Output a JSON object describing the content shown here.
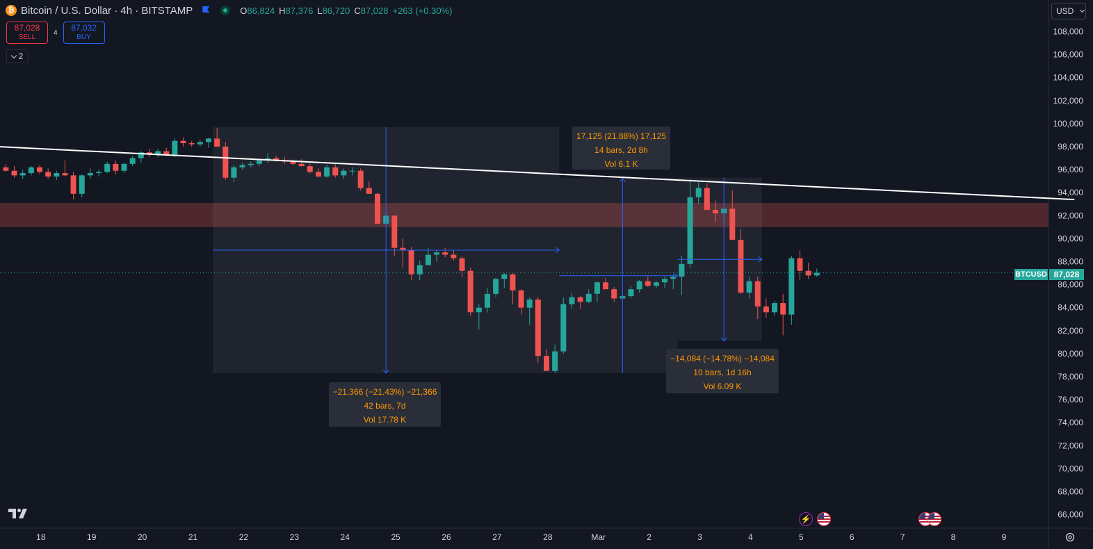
{
  "header": {
    "symbol": "Bitcoin / U.S. Dollar · 4h · BITSTAMP",
    "open_label": "O",
    "open": "86,824",
    "high_label": "H",
    "high": "87,376",
    "low_label": "L",
    "low": "86,720",
    "close_label": "C",
    "close": "87,028",
    "change": "+263 (+0.30%)"
  },
  "trade": {
    "sell_price": "87,028",
    "sell_label": "SELL",
    "spread": "4",
    "buy_price": "87,032",
    "buy_label": "BUY"
  },
  "collapse_count": "2",
  "currency": "USD",
  "price_badge": {
    "symbol": "BTCUSD",
    "price": "87,028"
  },
  "annotations": [
    {
      "line1": "17,125 (21.88%) 17,125",
      "line2": "14 bars, 2d 8h",
      "line3": "Vol 6.1 K"
    },
    {
      "line1": "−21,366 (−21.43%) −21,366",
      "line2": "42 bars, 7d",
      "line3": "Vol 17.78 K"
    },
    {
      "line1": "−14,084 (−14.78%) −14,084",
      "line2": "10 bars, 1d 16h",
      "line3": "Vol 6.09 K"
    }
  ],
  "colors": {
    "up": "#26a69a",
    "down": "#ef5350",
    "background": "#131722",
    "zone": "#5a2a30",
    "measure": "#2962ff",
    "trendline": "#ffffff"
  },
  "chart_data": {
    "type": "candlestick",
    "title": "Bitcoin / U.S. Dollar · 4h · BITSTAMP",
    "y_ticks": [
      108000,
      106000,
      104000,
      102000,
      100000,
      98000,
      96000,
      94000,
      92000,
      90000,
      88000,
      86000,
      84000,
      82000,
      80000,
      78000,
      76000,
      74000,
      72000,
      70000,
      68000,
      66000
    ],
    "y_tick_labels": [
      "108,000",
      "106,000",
      "104,000",
      "102,000",
      "100,000",
      "98,000",
      "96,000",
      "94,000",
      "92,000",
      "90,000",
      "88,000",
      "86,000",
      "84,000",
      "82,000",
      "80,000",
      "78,000",
      "76,000",
      "74,000",
      "72,000",
      "70,000",
      "68,000",
      "66,000"
    ],
    "x_tick_labels": [
      "18",
      "19",
      "20",
      "21",
      "22",
      "23",
      "24",
      "25",
      "26",
      "27",
      "28",
      "Mar",
      "2",
      "3",
      "4",
      "5",
      "6",
      "7",
      "8",
      "9"
    ],
    "x_tick_index": [
      0.2,
      6.2,
      12.2,
      18.2,
      24.2,
      30.2,
      36.2,
      42.2,
      48.2,
      54.2,
      60.2,
      66.2,
      72.2,
      78.2,
      84.2,
      90.2,
      96.2,
      102.2,
      108.2,
      114.2
    ],
    "ylim": [
      65000,
      109200
    ],
    "candles": [
      [
        96200,
        96500,
        95800,
        95900
      ],
      [
        95900,
        96300,
        95300,
        95500
      ],
      [
        95500,
        96000,
        95200,
        95700
      ],
      [
        95700,
        96300,
        95500,
        96200
      ],
      [
        96200,
        96400,
        95600,
        95800
      ],
      [
        95800,
        96100,
        95200,
        95400
      ],
      [
        95400,
        95900,
        95100,
        95700
      ],
      [
        95700,
        96800,
        95400,
        95500
      ],
      [
        95500,
        95800,
        93400,
        93900
      ],
      [
        93900,
        95600,
        93600,
        95500
      ],
      [
        95500,
        96100,
        95200,
        95700
      ],
      [
        95700,
        96000,
        95400,
        95800
      ],
      [
        95800,
        96700,
        95700,
        96500
      ],
      [
        96500,
        96800,
        95600,
        95900
      ],
      [
        95900,
        96600,
        95700,
        96500
      ],
      [
        96500,
        97200,
        96300,
        97000
      ],
      [
        97000,
        97600,
        96600,
        97500
      ],
      [
        97500,
        97800,
        97100,
        97300
      ],
      [
        97300,
        97800,
        97100,
        97600
      ],
      [
        97600,
        97900,
        97200,
        97300
      ],
      [
        97300,
        98700,
        97100,
        98500
      ],
      [
        98500,
        98800,
        98000,
        98300
      ],
      [
        98300,
        98500,
        98000,
        98200
      ],
      [
        98200,
        98600,
        98000,
        98400
      ],
      [
        98400,
        98800,
        97900,
        98700
      ],
      [
        98700,
        99600,
        98000,
        98000
      ],
      [
        98000,
        98400,
        95100,
        95300
      ],
      [
        95300,
        96400,
        94900,
        96200
      ],
      [
        96200,
        96600,
        96000,
        96400
      ],
      [
        96400,
        96700,
        96200,
        96500
      ],
      [
        96500,
        96900,
        96300,
        96800
      ],
      [
        96800,
        97400,
        96600,
        97000
      ],
      [
        97000,
        97200,
        96700,
        96800
      ],
      [
        96800,
        97100,
        96500,
        96700
      ],
      [
        96700,
        96900,
        96400,
        96500
      ],
      [
        96500,
        96900,
        96300,
        96300
      ],
      [
        96300,
        96500,
        95700,
        95800
      ],
      [
        95800,
        96100,
        95300,
        95400
      ],
      [
        95400,
        96400,
        95300,
        96200
      ],
      [
        96200,
        96500,
        95300,
        95500
      ],
      [
        95500,
        96100,
        95200,
        95900
      ],
      [
        95900,
        96200,
        95500,
        95900
      ],
      [
        95900,
        96100,
        94200,
        94400
      ],
      [
        94400,
        95000,
        93900,
        93900
      ],
      [
        93900,
        94000,
        91300,
        91300
      ],
      [
        91300,
        92400,
        91100,
        92000
      ],
      [
        92000,
        92000,
        88500,
        89200
      ],
      [
        89200,
        90000,
        87500,
        89000
      ],
      [
        89000,
        89300,
        86400,
        86900
      ],
      [
        86900,
        88100,
        86400,
        87700
      ],
      [
        87700,
        89200,
        87700,
        88600
      ],
      [
        88600,
        89000,
        88000,
        88800
      ],
      [
        88800,
        89200,
        88400,
        88600
      ],
      [
        88600,
        89000,
        88100,
        88300
      ],
      [
        88300,
        88500,
        86700,
        87200
      ],
      [
        87200,
        87500,
        83300,
        83600
      ],
      [
        83600,
        84300,
        82100,
        84000
      ],
      [
        84000,
        85700,
        83600,
        85200
      ],
      [
        85200,
        86600,
        84900,
        86500
      ],
      [
        86500,
        87000,
        85700,
        86900
      ],
      [
        86900,
        87000,
        84300,
        85500
      ],
      [
        85500,
        85600,
        83400,
        84000
      ],
      [
        84000,
        84900,
        82500,
        84700
      ],
      [
        84700,
        84900,
        79200,
        79800
      ],
      [
        79800,
        80400,
        78500,
        78500
      ],
      [
        78500,
        80800,
        78300,
        80200
      ],
      [
        80200,
        84900,
        80000,
        84300
      ],
      [
        84300,
        85300,
        83900,
        84900
      ],
      [
        84900,
        85000,
        83900,
        84500
      ],
      [
        84500,
        85600,
        84400,
        85200
      ],
      [
        85200,
        86300,
        84500,
        86200
      ],
      [
        86200,
        86600,
        85700,
        85600
      ],
      [
        85600,
        85800,
        84500,
        84800
      ],
      [
        84800,
        85300,
        84600,
        85000
      ],
      [
        85000,
        85900,
        84800,
        85600
      ],
      [
        85600,
        86400,
        85300,
        86300
      ],
      [
        86300,
        86700,
        85800,
        85900
      ],
      [
        85900,
        86300,
        85700,
        86200
      ],
      [
        86200,
        86700,
        85700,
        86500
      ],
      [
        86500,
        86900,
        85600,
        86700
      ],
      [
        86700,
        88500,
        85100,
        87800
      ],
      [
        87800,
        95200,
        87400,
        93600
      ],
      [
        93600,
        94900,
        93000,
        94400
      ],
      [
        94400,
        94800,
        92500,
        92500
      ],
      [
        92500,
        93300,
        91500,
        92200
      ],
      [
        92200,
        92800,
        91200,
        92600
      ],
      [
        92600,
        94200,
        89900,
        89900
      ],
      [
        89900,
        90800,
        85200,
        85300
      ],
      [
        85300,
        86700,
        84800,
        86300
      ],
      [
        86300,
        86700,
        83000,
        84100
      ],
      [
        84100,
        84800,
        83100,
        83600
      ],
      [
        83600,
        84600,
        83300,
        84400
      ],
      [
        84400,
        85200,
        81600,
        83400
      ],
      [
        83400,
        88500,
        82500,
        88300
      ],
      [
        88300,
        89000,
        86400,
        87200
      ],
      [
        87200,
        87900,
        86500,
        86800
      ],
      [
        86800,
        87400,
        86700,
        87028
      ]
    ]
  },
  "drawings": {
    "trendline": {
      "start": [
        -1,
        98000
      ],
      "end": [
        126.5,
        93400
      ]
    },
    "zone": {
      "top": 93100,
      "bottom": 91000
    },
    "current_price": 87028,
    "ranges": [
      {
        "x0": 25,
        "x1": 66,
        "high": 99700,
        "low": 78300,
        "direction": "down",
        "mid_x": 45.5,
        "label_index": 1
      },
      {
        "x0": 66,
        "x1": 80,
        "high": 95250,
        "low": 78300,
        "direction": "up",
        "mid_x": 73.5,
        "label_index": 0
      },
      {
        "x0": 80,
        "x1": 90,
        "high": 95300,
        "low": 81100,
        "direction": "down",
        "mid_x": 85.5,
        "label_index": 2
      }
    ]
  },
  "events": {
    "bolt_icon": "lightning-icon",
    "flag_icon": "us-flag-icon"
  }
}
